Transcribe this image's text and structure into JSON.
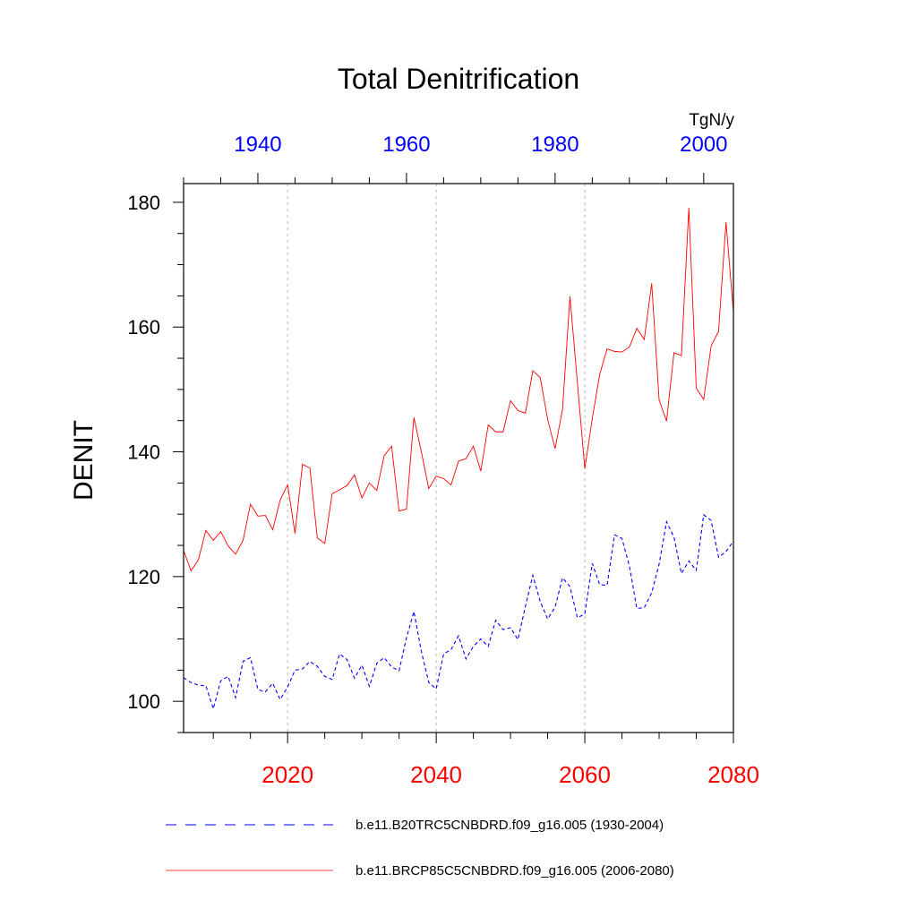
{
  "chart_data": {
    "type": "line",
    "title": "Total Denitrification",
    "units": "TgN/y",
    "ylabel": "DENIT",
    "ylim": [
      95,
      183
    ],
    "yticks": [
      100,
      120,
      140,
      160,
      180
    ],
    "bottom_axis": {
      "range": [
        2006,
        2080
      ],
      "ticks": [
        2020,
        2040,
        2060,
        2080
      ],
      "label_color": "#ff0000"
    },
    "top_axis": {
      "range": [
        1930,
        2004
      ],
      "ticks": [
        1940,
        1960,
        1980,
        2000
      ],
      "label_color": "#0000ff"
    },
    "series": [
      {
        "name": "b.e11.B20TRC5CNBDRD.f09_g16.005 (1930-2004)",
        "color": "#0000ff",
        "style": "dashed",
        "x_start": 1930,
        "values": [
          103.8,
          103.0,
          102.6,
          102.5,
          98.8,
          103.3,
          104.0,
          100.6,
          106.4,
          107.0,
          101.9,
          101.5,
          102.9,
          100.3,
          102.3,
          105.0,
          105.2,
          106.4,
          105.6,
          104.0,
          103.5,
          107.6,
          106.7,
          103.7,
          105.8,
          102.4,
          106.1,
          107.0,
          105.5,
          104.9,
          110.2,
          114.4,
          108.0,
          103.0,
          102.0,
          107.6,
          108.3,
          110.5,
          106.8,
          108.8,
          110.0,
          108.8,
          113.0,
          111.5,
          111.8,
          109.9,
          115.2,
          120.2,
          116.0,
          113.2,
          115.1,
          119.8,
          118.4,
          113.4,
          114.0,
          122.1,
          118.7,
          118.6,
          126.7,
          126.1,
          121.7,
          114.9,
          115.0,
          117.4,
          122.0,
          128.8,
          126.3,
          120.5,
          122.5,
          121.0,
          129.9,
          129.0,
          123.1,
          124.0,
          125.7
        ]
      },
      {
        "name": "b.e11.BRCP85C5CNBDRD.f09_g16.005 (2006-2080)",
        "color": "#ff0000",
        "style": "solid",
        "x_start": 2006,
        "values": [
          124.2,
          120.9,
          122.7,
          127.4,
          125.8,
          127.2,
          124.9,
          123.6,
          125.8,
          131.6,
          129.7,
          129.8,
          127.5,
          132.3,
          134.7,
          126.9,
          138.0,
          137.4,
          126.2,
          125.3,
          133.3,
          133.9,
          134.6,
          136.3,
          132.6,
          135.0,
          133.8,
          139.4,
          140.9,
          130.5,
          130.8,
          145.5,
          140.0,
          134.1,
          136.1,
          135.7,
          134.7,
          138.5,
          138.9,
          140.9,
          136.9,
          144.3,
          143.2,
          143.2,
          148.2,
          146.6,
          146.2,
          153.0,
          151.9,
          145.2,
          140.5,
          146.8,
          164.9,
          151.1,
          137.3,
          145.3,
          152.4,
          156.5,
          156.1,
          156.0,
          156.8,
          159.8,
          158.0,
          167.0,
          148.3,
          144.9,
          155.9,
          155.4,
          179.1,
          150.2,
          148.4,
          157.0,
          159.3,
          176.8,
          162.4
        ]
      }
    ],
    "legend": [
      {
        "label": "b.e11.B20TRC5CNBDRD.f09_g16.005 (1930-2004)",
        "color": "#0000ff",
        "style": "dashed"
      },
      {
        "label": "b.e11.BRCP85C5CNBDRD.f09_g16.005 (2006-2080)",
        "color": "#ff0000",
        "style": "solid"
      }
    ]
  }
}
